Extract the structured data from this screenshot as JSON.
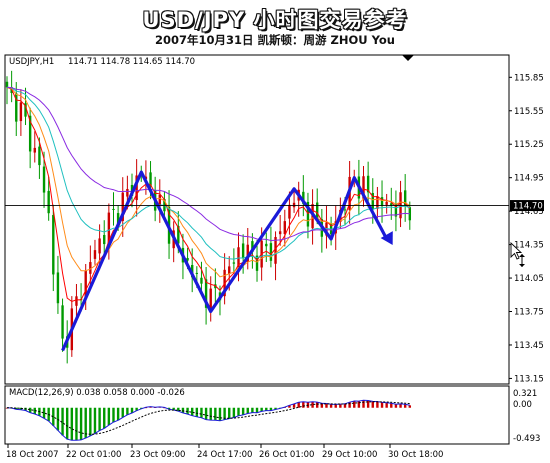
{
  "header": {
    "title": "USD/JPY  小时图交易参考",
    "subtitle": "2007年10月31日   凯斯顿：周游 ZHOU You"
  },
  "chart_data": [
    {
      "type": "line",
      "instrument_label": "USDJPY,H1",
      "ohlc_label": "114.71 114.78 114.65 114.70",
      "current_price_label": "114.70",
      "ylim": [
        113.1,
        116.05
      ],
      "y_ticks": [
        "115.85",
        "115.55",
        "115.25",
        "114.95",
        "114.65",
        "114.35",
        "114.05",
        "113.75",
        "113.45",
        "113.15"
      ],
      "x_ticks": [
        "18 Oct 2007",
        "22 Oct 01:00",
        "23 Oct 09:00",
        "24 Oct 17:00",
        "26 Oct 01:00",
        "29 Oct 10:00",
        "30 Oct 18:00"
      ],
      "pattern_line": {
        "color": "#1a1ad8",
        "points": [
          {
            "bar": 12,
            "price": 113.4
          },
          {
            "bar": 29,
            "price": 115.0
          },
          {
            "bar": 44,
            "price": 113.75
          },
          {
            "bar": 62,
            "price": 114.85
          },
          {
            "bar": 70,
            "price": 114.4
          },
          {
            "bar": 75,
            "price": 114.95
          },
          {
            "bar": 82,
            "price": 114.4
          }
        ]
      },
      "trend_arrow_direction": "down"
    },
    {
      "type": "bar",
      "indicator_label": "MACD(12,26,9) 0.038 0.058 0.000 -0.026",
      "ylim": [
        -0.6,
        0.36
      ],
      "y_ticks": [
        "0.321",
        "0.00",
        "-0.493"
      ],
      "x_ticks": [
        "18 Oct 2007",
        "22 Oct 01:00",
        "23 Oct 09:00",
        "24 Oct 17:00",
        "26 Oct 01:00",
        "29 Oct 10:00",
        "30 Oct 18:00"
      ]
    }
  ],
  "colors": {
    "bull_candle": "#cc0000",
    "bear_candle": "#009900",
    "ma_fast": "#ff0000",
    "ma_mid": "#ff8c1a",
    "ma_slow": "#20c0c0",
    "ma_long": "#8a2be2",
    "hist_positive": "#cc0000",
    "hist_negative": "#009900",
    "macd_line": "#1a1ad8",
    "signal_line": "#000000"
  }
}
